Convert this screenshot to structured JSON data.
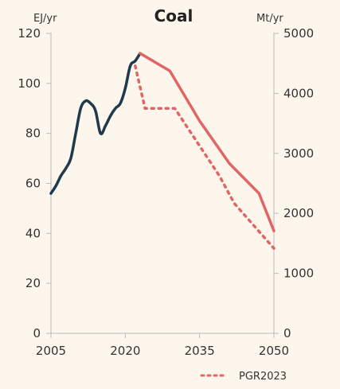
{
  "chart_data": {
    "type": "line",
    "title": "Coal",
    "y_left_label": "EJ/yr",
    "y_right_label": "Mt/yr",
    "x_range": [
      2005,
      2050
    ],
    "x_ticks": [
      "2005",
      "2020",
      "2035",
      "2050"
    ],
    "y_left_range": [
      0,
      120
    ],
    "y_left_ticks": [
      "0",
      "20",
      "40",
      "60",
      "80",
      "100",
      "120"
    ],
    "y_right_range": [
      0,
      5000
    ],
    "y_right_ticks": [
      "0",
      "1000",
      "2000",
      "3000",
      "4000",
      "5000"
    ],
    "grid": false,
    "legend_position": "bottom-right",
    "colors": {
      "historical": "#1f3a4d",
      "projection": "#e06666",
      "axis": "#bbbbbb"
    },
    "series": [
      {
        "key": "historical",
        "style": "solid",
        "x": [
          2005,
          2006,
          2007,
          2008,
          2009,
          2010,
          2011,
          2012,
          2013,
          2014,
          2015,
          2016,
          2017,
          2018,
          2019,
          2020,
          2021,
          2022,
          2023
        ],
        "y": [
          56,
          59,
          63,
          66,
          70,
          80,
          90,
          93,
          92,
          89,
          80,
          83,
          87,
          90,
          92,
          98,
          107,
          109,
          112
        ]
      },
      {
        "key": "projection",
        "style": "solid",
        "x": [
          2023,
          2029,
          2035,
          2041,
          2047,
          2050
        ],
        "y": [
          112,
          105,
          85,
          68,
          56,
          41
        ]
      },
      {
        "name": "PGR2023",
        "key": "pgr2023",
        "style": "dotted",
        "x": [
          2022,
          2024,
          2030,
          2034,
          2039,
          2042,
          2046,
          2050
        ],
        "y": [
          107,
          90,
          90,
          78,
          63,
          52,
          43,
          34
        ]
      }
    ]
  }
}
